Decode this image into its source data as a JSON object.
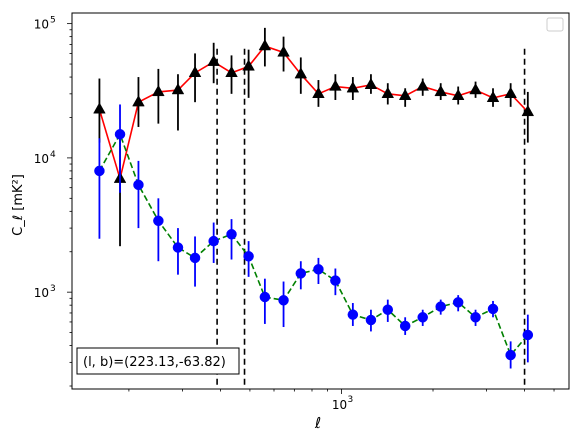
{
  "chart_data": {
    "type": "scatter",
    "xscale": "log",
    "yscale": "log",
    "xlim": [
      130,
      5600
    ],
    "ylim": [
      190,
      120000
    ],
    "xlabel": "ℓ",
    "ylabel": "C_ℓ  [mK²]",
    "yticks": [
      {
        "value": 1000,
        "label": "10",
        "exp": "3"
      },
      {
        "value": 10000,
        "label": "10",
        "exp": "4"
      },
      {
        "value": 100000,
        "label": "10",
        "exp": "5"
      }
    ],
    "xticks": [
      {
        "value": 1000,
        "label": "10",
        "exp": "3"
      }
    ],
    "vlines": [
      390,
      480,
      4000
    ],
    "annotation": "(l, b)=(223.13,-63.82)",
    "series": [
      {
        "color": "#000000",
        "line_color": "#ff0000",
        "marker": "triangle",
        "line_style": "solid",
        "points": [
          {
            "x": 160,
            "y": 23000,
            "lo": 13000,
            "hi": 39000
          },
          {
            "x": 187,
            "y": 7000,
            "lo": 2200,
            "hi": 16000
          },
          {
            "x": 215,
            "y": 26000,
            "lo": 17000,
            "hi": 40000
          },
          {
            "x": 250,
            "y": 31000,
            "lo": 18000,
            "hi": 46000
          },
          {
            "x": 290,
            "y": 32000,
            "lo": 16000,
            "hi": 42000
          },
          {
            "x": 330,
            "y": 43000,
            "lo": 26000,
            "hi": 60000
          },
          {
            "x": 380,
            "y": 52000,
            "lo": 36000,
            "hi": 72000
          },
          {
            "x": 435,
            "y": 43000,
            "lo": 30000,
            "hi": 58000
          },
          {
            "x": 495,
            "y": 48000,
            "lo": 28000,
            "hi": 64000
          },
          {
            "x": 560,
            "y": 68000,
            "lo": 48000,
            "hi": 93000
          },
          {
            "x": 645,
            "y": 61000,
            "lo": 44000,
            "hi": 80000
          },
          {
            "x": 735,
            "y": 42000,
            "lo": 30000,
            "hi": 56000
          },
          {
            "x": 840,
            "y": 30000,
            "lo": 24000,
            "hi": 38000
          },
          {
            "x": 955,
            "y": 34000,
            "lo": 27000,
            "hi": 42000
          },
          {
            "x": 1090,
            "y": 33000,
            "lo": 27000,
            "hi": 40000
          },
          {
            "x": 1250,
            "y": 35000,
            "lo": 30000,
            "hi": 42000
          },
          {
            "x": 1420,
            "y": 30000,
            "lo": 25000,
            "hi": 36000
          },
          {
            "x": 1620,
            "y": 29000,
            "lo": 24000,
            "hi": 33000
          },
          {
            "x": 1850,
            "y": 34000,
            "lo": 29000,
            "hi": 39000
          },
          {
            "x": 2120,
            "y": 31000,
            "lo": 27000,
            "hi": 36000
          },
          {
            "x": 2420,
            "y": 29000,
            "lo": 25000,
            "hi": 34000
          },
          {
            "x": 2760,
            "y": 32000,
            "lo": 28000,
            "hi": 37000
          },
          {
            "x": 3150,
            "y": 28000,
            "lo": 24000,
            "hi": 33000
          },
          {
            "x": 3600,
            "y": 30000,
            "lo": 24000,
            "hi": 36000
          },
          {
            "x": 4100,
            "y": 22000,
            "lo": 13000,
            "hi": 31000
          }
        ]
      },
      {
        "color": "#0000ff",
        "line_color": "#008000",
        "marker": "circle",
        "line_style": "dashed",
        "points": [
          {
            "x": 160,
            "y": 8000,
            "lo": 2500,
            "hi": 14000
          },
          {
            "x": 187,
            "y": 15000,
            "lo": 5500,
            "hi": 25000
          },
          {
            "x": 215,
            "y": 6300,
            "lo": 3000,
            "hi": 9500
          },
          {
            "x": 250,
            "y": 3400,
            "lo": 1700,
            "hi": 5000
          },
          {
            "x": 290,
            "y": 2150,
            "lo": 1350,
            "hi": 3000
          },
          {
            "x": 330,
            "y": 1800,
            "lo": 1100,
            "hi": 2600
          },
          {
            "x": 380,
            "y": 2400,
            "lo": 1650,
            "hi": 3300
          },
          {
            "x": 435,
            "y": 2700,
            "lo": 1750,
            "hi": 3500
          },
          {
            "x": 495,
            "y": 1850,
            "lo": 1300,
            "hi": 2400
          },
          {
            "x": 560,
            "y": 920,
            "lo": 580,
            "hi": 1260
          },
          {
            "x": 645,
            "y": 870,
            "lo": 550,
            "hi": 1200
          },
          {
            "x": 735,
            "y": 1380,
            "lo": 1050,
            "hi": 1700
          },
          {
            "x": 840,
            "y": 1480,
            "lo": 1150,
            "hi": 1800
          },
          {
            "x": 955,
            "y": 1220,
            "lo": 950,
            "hi": 1500
          },
          {
            "x": 1090,
            "y": 680,
            "lo": 560,
            "hi": 830
          },
          {
            "x": 1250,
            "y": 620,
            "lo": 510,
            "hi": 740
          },
          {
            "x": 1420,
            "y": 740,
            "lo": 600,
            "hi": 880
          },
          {
            "x": 1620,
            "y": 560,
            "lo": 480,
            "hi": 650
          },
          {
            "x": 1850,
            "y": 650,
            "lo": 560,
            "hi": 740
          },
          {
            "x": 2120,
            "y": 780,
            "lo": 680,
            "hi": 880
          },
          {
            "x": 2420,
            "y": 840,
            "lo": 720,
            "hi": 950
          },
          {
            "x": 2760,
            "y": 650,
            "lo": 560,
            "hi": 740
          },
          {
            "x": 3150,
            "y": 750,
            "lo": 650,
            "hi": 860
          },
          {
            "x": 3600,
            "y": 340,
            "lo": 270,
            "hi": 430
          },
          {
            "x": 4100,
            "y": 480,
            "lo": 300,
            "hi": 680
          }
        ]
      }
    ]
  }
}
